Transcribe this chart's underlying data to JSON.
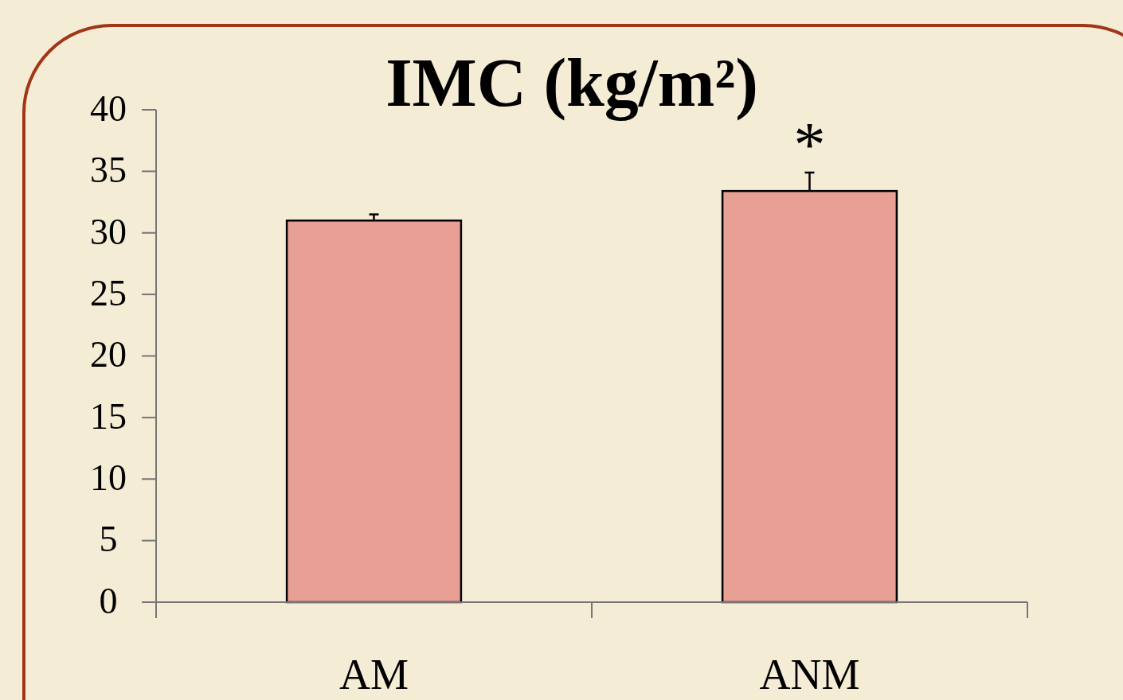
{
  "chart_data": {
    "type": "bar",
    "title": "IMC (kg/m²)",
    "categories": [
      "AM",
      "ANM"
    ],
    "values": [
      31,
      33.4
    ],
    "errors": [
      [
        31,
        31.5
      ],
      [
        33.4,
        34.9
      ]
    ],
    "color": "#e8a095",
    "ylim": [
      0,
      40
    ],
    "yticks": [
      0,
      5,
      10,
      15,
      20,
      25,
      30,
      35,
      40
    ],
    "annotations": [
      "*"
    ],
    "grid": false
  }
}
